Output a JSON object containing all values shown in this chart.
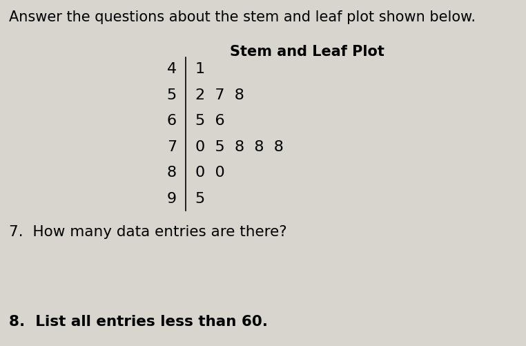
{
  "header_text": "Answer the questions about the stem and leaf plot shown below.",
  "plot_title": "Stem and Leaf Plot",
  "stems": [
    "4",
    "5",
    "6",
    "7",
    "8",
    "9"
  ],
  "leaves": [
    "1",
    "2  7  8",
    "5  6",
    "0  5  8  8  8",
    "0  0",
    "5"
  ],
  "question7": "7.  How many data entries are there?",
  "question8": "8.  List all entries less than 60.",
  "background_color": "#d8d5ce",
  "text_color": "#000000",
  "header_fontsize": 15,
  "title_fontsize": 15,
  "table_fontsize": 16,
  "question_fontsize": 15.5
}
